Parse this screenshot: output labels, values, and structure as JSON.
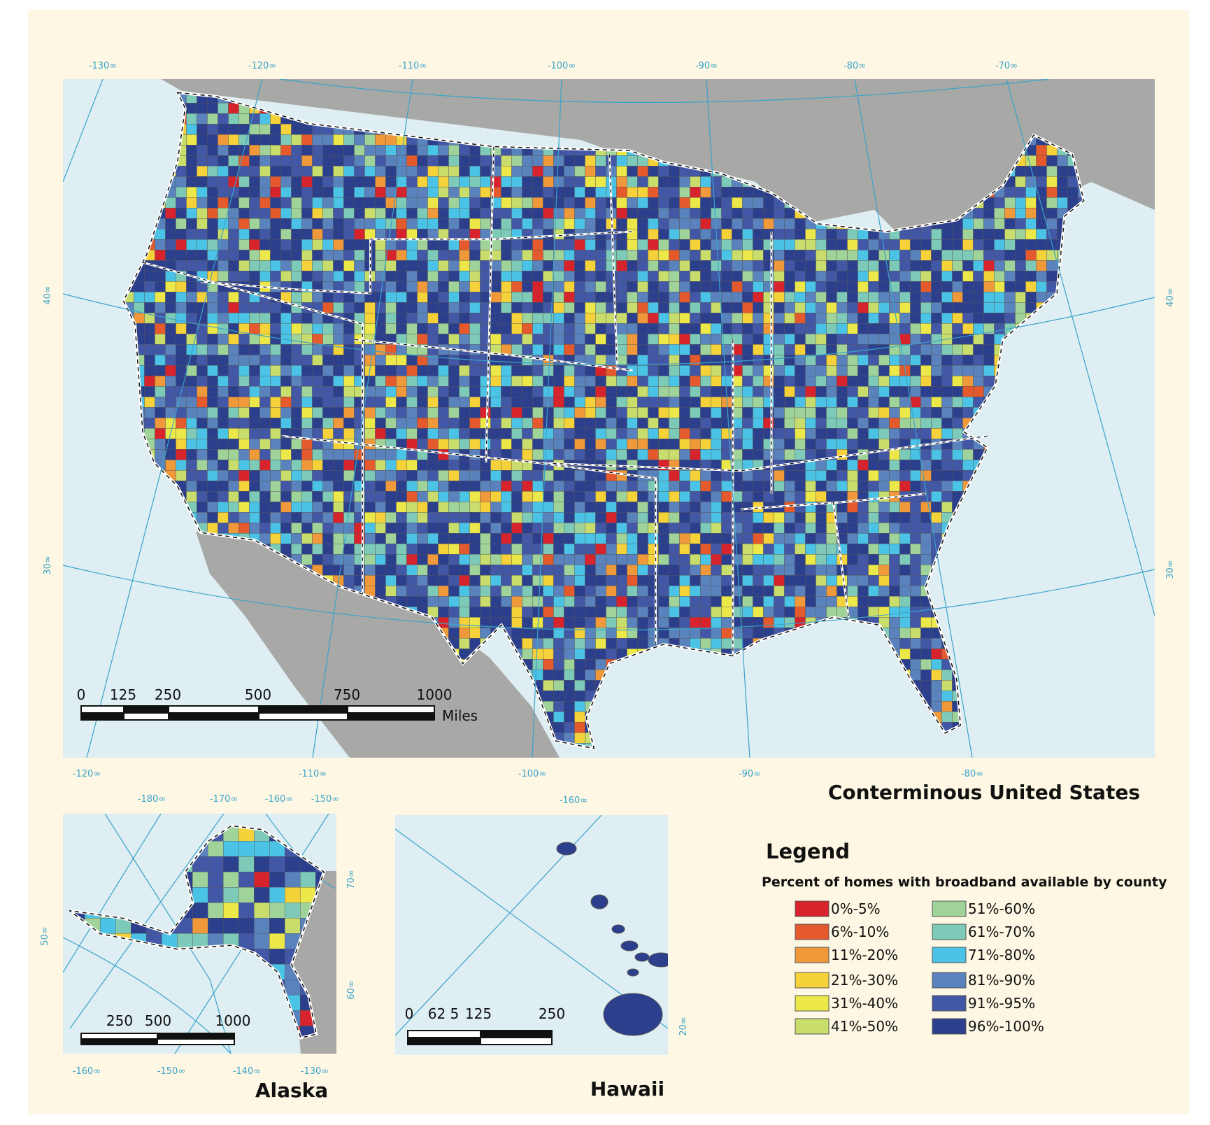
{
  "main_map": {
    "title": "Conterminous United States",
    "longitude_labels_top": [
      "-130∞",
      "-120∞",
      "-110∞",
      "-100∞",
      "-90∞",
      "-80∞",
      "-70∞"
    ],
    "longitude_labels_bottom": [
      "-120∞",
      "-110∞",
      "-100∞",
      "-90∞",
      "-80∞"
    ],
    "latitude_labels_left": [
      "40∞",
      "30∞"
    ],
    "latitude_labels_right": [
      "40∞",
      "30∞"
    ],
    "scale_bar": {
      "labels": [
        "0",
        "125",
        "250",
        "500",
        "750",
        "1000"
      ],
      "unit": "Miles"
    }
  },
  "alaska": {
    "title": "Alaska",
    "longitude_labels_top": [
      "-180∞",
      "-170∞",
      "-160∞",
      "-150∞"
    ],
    "longitude_labels_bottom": [
      "-160∞",
      "-150∞",
      "-140∞",
      "-130∞"
    ],
    "latitude_labels": [
      "50∞",
      "70∞",
      "60∞"
    ],
    "scale_bar": {
      "labels": [
        "250",
        "500",
        "1000"
      ]
    }
  },
  "hawaii": {
    "title": "Hawaii",
    "longitude_labels": [
      "-160∞"
    ],
    "latitude_labels": [
      "20∞"
    ],
    "scale_bar": {
      "labels": [
        "0",
        "62 5",
        "125",
        "250"
      ]
    }
  },
  "legend": {
    "title": "Legend",
    "subtitle": "Percent of homes with broadband available by county",
    "items": [
      {
        "label": "0%-5%",
        "color": "#d7232b"
      },
      {
        "label": "6%-10%",
        "color": "#e45a2c"
      },
      {
        "label": "11%-20%",
        "color": "#f0993a"
      },
      {
        "label": "21%-30%",
        "color": "#f6d23a"
      },
      {
        "label": "31%-40%",
        "color": "#ece84a"
      },
      {
        "label": "41%-50%",
        "color": "#c9dd6d"
      },
      {
        "label": "51%-60%",
        "color": "#9fd39a"
      },
      {
        "label": "61%-70%",
        "color": "#7ccab7"
      },
      {
        "label": "71%-80%",
        "color": "#4bc3e6"
      },
      {
        "label": "81%-90%",
        "color": "#5a82bd"
      },
      {
        "label": "91%-95%",
        "color": "#4257a6"
      },
      {
        "label": "96%-100%",
        "color": "#2c3f8c"
      }
    ]
  }
}
